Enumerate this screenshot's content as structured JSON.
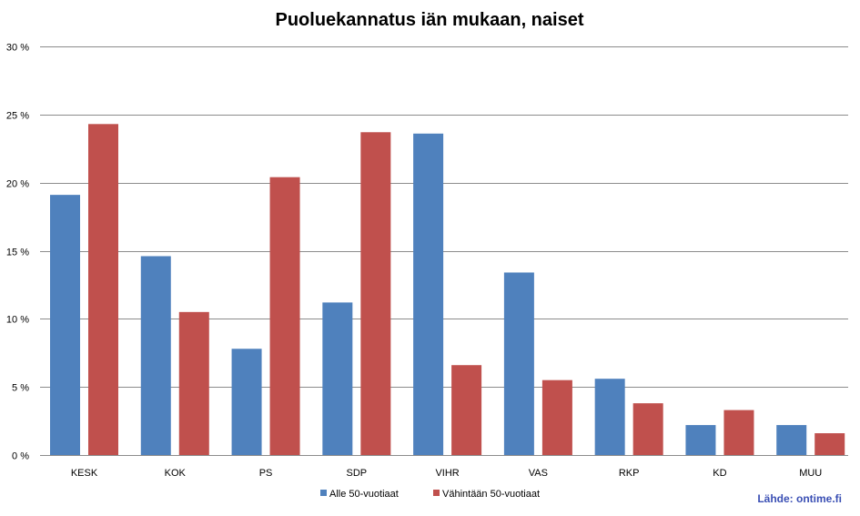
{
  "chart_data": {
    "type": "bar",
    "title": "Puoluekannatus iän mukaan, naiset",
    "categories": [
      "KESK",
      "KOK",
      "PS",
      "SDP",
      "VIHR",
      "VAS",
      "RKP",
      "KD",
      "MUU"
    ],
    "series": [
      {
        "name": "Alle 50-vuotiaat",
        "color": "#4f81bd",
        "values": [
          19.1,
          14.6,
          7.8,
          11.2,
          23.6,
          13.4,
          5.6,
          2.2,
          2.2
        ]
      },
      {
        "name": "Vähintään 50-vuotiaat",
        "color": "#c0504d",
        "values": [
          24.3,
          10.5,
          20.4,
          23.7,
          6.6,
          5.5,
          3.8,
          3.3,
          1.6
        ]
      }
    ],
    "ylim": [
      0,
      30
    ],
    "yticks": [
      0,
      5,
      10,
      15,
      20,
      25,
      30
    ],
    "ytick_labels": [
      "0 %",
      "5 %",
      "10 %",
      "15 %",
      "20 %",
      "25 %",
      "30 %"
    ],
    "grid": true,
    "legend_position": "bottom",
    "gridline_color": "#8c8c8c"
  },
  "source": {
    "text": "Lähde: ontime.fi",
    "color": "#3a4fb4"
  }
}
